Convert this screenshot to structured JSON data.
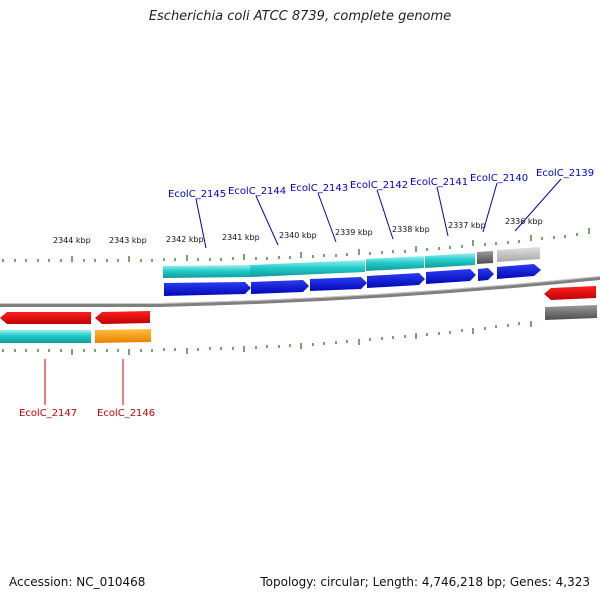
{
  "title": "Escherichia coli ATCC 8739, complete genome",
  "footer": {
    "accession": "Accession: NC_010468",
    "summary": "Topology: circular; Length: 4,746,218 bp; Genes: 4,323"
  },
  "colors": {
    "forward_label": "#0000cc",
    "reverse_label": "#cc0000",
    "forward_cds": "#0a14dc",
    "reverse_cds": "#e00000",
    "rna_track": "#20c8c8",
    "pseudo_dark": "#707070",
    "pseudo_light": "#bdbdbd",
    "orange_feature": "#ff9a00",
    "ticks": "#2a7a1a",
    "backbone": "#888888"
  },
  "scale_labels": [
    "2344 kbp",
    "2343 kbp",
    "2342 kbp",
    "2341 kbp",
    "2340 kbp",
    "2339 kbp",
    "2338 kbp",
    "2337 kbp",
    "2336 kbp"
  ],
  "forward_genes": [
    "EcolC_2145",
    "EcolC_2144",
    "EcolC_2143",
    "EcolC_2142",
    "EcolC_2141",
    "EcolC_2140",
    "EcolC_2139"
  ],
  "reverse_genes": [
    "EcolC_2147",
    "EcolC_2146"
  ]
}
